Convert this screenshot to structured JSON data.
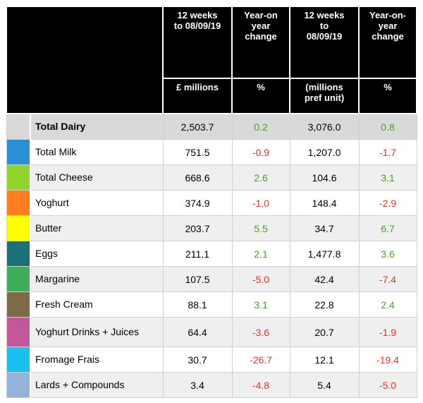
{
  "header": {
    "col1_line1": "12 weeks",
    "col1_line2": "to 08/09/19",
    "col2_line1": "Year-on",
    "col2_line2": "year",
    "col2_line3": "change",
    "col3_line1": "12 weeks",
    "col3_line2": "to",
    "col3_line3": "08/09/19",
    "col4_line1": "Year-on-",
    "col4_line2": "year",
    "col4_line3": "change",
    "unit1": "£ millions",
    "unit2": "%",
    "unit3_line1": "(millions",
    "unit3_line2": "pref unit)",
    "unit4": "%"
  },
  "colors": {
    "positive": "#4e9a2b",
    "negative": "#e3342b"
  },
  "rows": [
    {
      "category": "Total Dairy",
      "value_gbp": "2,503.7",
      "change_gbp": "0.2",
      "value_units": "3,076.0",
      "change_units": "0.8",
      "swatch": "#d9d9d9",
      "gbp_sign": "pos",
      "units_sign": "pos"
    },
    {
      "category": "Total Milk",
      "value_gbp": "751.5",
      "change_gbp": "-0.9",
      "value_units": "1,207.0",
      "change_units": "-1.7",
      "swatch": "#2b8fd4",
      "gbp_sign": "neg",
      "units_sign": "neg"
    },
    {
      "category": "Total Cheese",
      "value_gbp": "668.6",
      "change_gbp": "2.6",
      "value_units": "104.6",
      "change_units": "3.1",
      "swatch": "#8fd42a",
      "gbp_sign": "pos",
      "units_sign": "pos"
    },
    {
      "category": "Yoghurt",
      "value_gbp": "374.9",
      "change_gbp": "-1.0",
      "value_units": "148.4",
      "change_units": "-2.9",
      "swatch": "#ff7f1e",
      "gbp_sign": "neg",
      "units_sign": "neg"
    },
    {
      "category": "Butter",
      "value_gbp": "203.7",
      "change_gbp": "5.5",
      "value_units": "34.7",
      "change_units": "6.7",
      "swatch": "#ffff00",
      "gbp_sign": "pos",
      "units_sign": "pos"
    },
    {
      "category": "Eggs",
      "value_gbp": "211.1",
      "change_gbp": "2.1",
      "value_units": "1,477.8",
      "change_units": "3.6",
      "swatch": "#1d6f7a",
      "gbp_sign": "pos",
      "units_sign": "pos"
    },
    {
      "category": "Margarine",
      "value_gbp": "107.5",
      "change_gbp": "-5.0",
      "value_units": "42.4",
      "change_units": "-7.4",
      "swatch": "#3fae5a",
      "gbp_sign": "neg",
      "units_sign": "neg"
    },
    {
      "category": "Fresh Cream",
      "value_gbp": "88.1",
      "change_gbp": "3.1",
      "value_units": "22.8",
      "change_units": "2.4",
      "swatch": "#7d6a48",
      "gbp_sign": "pos",
      "units_sign": "pos"
    },
    {
      "category": "Yoghurt Drinks + Juices",
      "value_gbp": "64.4",
      "change_gbp": "-3.6",
      "value_units": "20.7",
      "change_units": "-1.9",
      "swatch": "#c4569c",
      "gbp_sign": "neg",
      "units_sign": "neg"
    },
    {
      "category": "Fromage Frais",
      "value_gbp": "30.7",
      "change_gbp": "-26.7",
      "value_units": "12.1",
      "change_units": "-19.4",
      "swatch": "#19c1ef",
      "gbp_sign": "neg",
      "units_sign": "neg"
    },
    {
      "category": "Lards + Compounds",
      "value_gbp": "3.4",
      "change_gbp": "-4.8",
      "value_units": "5.4",
      "change_units": "-5.0",
      "swatch": "#94b4dc",
      "gbp_sign": "neg",
      "units_sign": "neg"
    }
  ]
}
